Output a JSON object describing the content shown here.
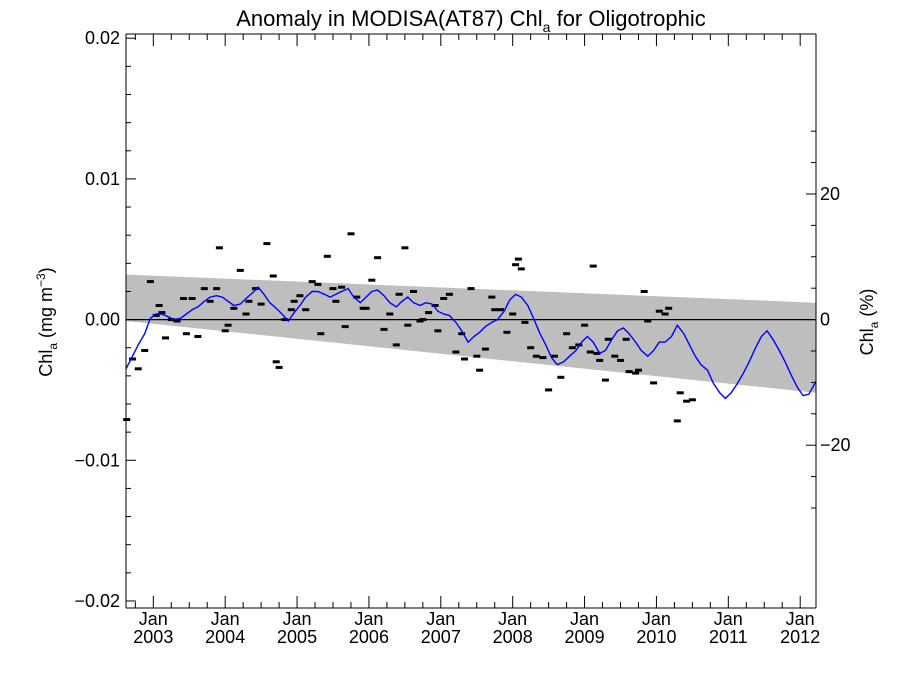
{
  "chart_data": {
    "type": "scatter",
    "title_main": "Anomaly in MODISA(AT87) Chl",
    "title_sub": "a",
    "title_rest": " for Oligotrophic",
    "ylabel_left_main": "Chl",
    "ylabel_left_sub": "a",
    "ylabel_left_units": " (mg m",
    "ylabel_left_exp": "−3",
    "ylabel_left_close": ")",
    "ylabel_right_main": "Chl",
    "ylabel_right_sub": "a",
    "ylabel_right_units": " (%)",
    "left_axis": {
      "ylim": [
        -0.0205,
        0.0203
      ],
      "ticks": [
        -0.02,
        -0.01,
        0.0,
        0.01,
        0.02
      ],
      "tick_labels": [
        "−0.02",
        "−0.01",
        "0.00",
        "0.01",
        "0.02"
      ]
    },
    "right_axis": {
      "ticks": [
        -20,
        0,
        20
      ],
      "tick_labels": [
        "−20",
        "0",
        "20"
      ],
      "percent_per_unit": 2240
    },
    "x_axis": {
      "xlim": [
        2002.62,
        2012.22
      ],
      "ticks": [
        2003,
        2004,
        2005,
        2006,
        2007,
        2008,
        2009,
        2010,
        2011,
        2012
      ],
      "tick_month": "Jan",
      "tick_years": [
        "2003",
        "2004",
        "2005",
        "2006",
        "2007",
        "2008",
        "2009",
        "2010",
        "2011",
        "2012"
      ]
    },
    "zero_line": true,
    "confidence_band": {
      "x": [
        2002.62,
        2012.22
      ],
      "upper": [
        0.0032,
        0.0012
      ],
      "lower": [
        -0.0001,
        -0.0052
      ],
      "color": "#bebebe"
    },
    "series": [
      {
        "style": "markers",
        "color": "#000000",
        "points": [
          [
            2002.63,
            -0.0071
          ],
          [
            2002.71,
            -0.0028
          ],
          [
            2002.79,
            -0.0035
          ],
          [
            2002.88,
            -0.0022
          ],
          [
            2002.96,
            0.0027
          ],
          [
            2003.04,
            0.0003
          ],
          [
            2003.08,
            0.001
          ],
          [
            2003.12,
            0.0005
          ],
          [
            2003.17,
            -0.0013
          ],
          [
            2003.25,
            0.0
          ],
          [
            2003.33,
            -0.0001
          ],
          [
            2003.42,
            0.0015
          ],
          [
            2003.46,
            -0.001
          ],
          [
            2003.54,
            0.0015
          ],
          [
            2003.62,
            -0.0012
          ],
          [
            2003.71,
            0.0022
          ],
          [
            2003.79,
            0.0013
          ],
          [
            2003.88,
            0.0022
          ],
          [
            2003.92,
            0.0051
          ],
          [
            2004.0,
            -0.0008
          ],
          [
            2004.04,
            -0.0004
          ],
          [
            2004.12,
            0.0008
          ],
          [
            2004.21,
            0.0035
          ],
          [
            2004.29,
            0.0004
          ],
          [
            2004.33,
            0.0013
          ],
          [
            2004.42,
            0.0022
          ],
          [
            2004.5,
            0.0011
          ],
          [
            2004.58,
            0.0054
          ],
          [
            2004.67,
            0.0031
          ],
          [
            2004.71,
            -0.003
          ],
          [
            2004.75,
            -0.0034
          ],
          [
            2004.83,
            0.0
          ],
          [
            2004.92,
            0.0007
          ],
          [
            2004.96,
            0.0013
          ],
          [
            2005.04,
            0.0017
          ],
          [
            2005.12,
            0.0007
          ],
          [
            2005.21,
            0.0027
          ],
          [
            2005.29,
            0.0025
          ],
          [
            2005.33,
            -0.001
          ],
          [
            2005.42,
            0.0045
          ],
          [
            2005.5,
            0.0022
          ],
          [
            2005.54,
            0.0013
          ],
          [
            2005.62,
            0.0023
          ],
          [
            2005.67,
            -0.0005
          ],
          [
            2005.75,
            0.0061
          ],
          [
            2005.83,
            0.0016
          ],
          [
            2005.92,
            0.0008
          ],
          [
            2005.96,
            0.0008
          ],
          [
            2006.04,
            0.0028
          ],
          [
            2006.12,
            0.0044
          ],
          [
            2006.21,
            -0.0007
          ],
          [
            2006.29,
            0.0004
          ],
          [
            2006.38,
            -0.0018
          ],
          [
            2006.42,
            0.0018
          ],
          [
            2006.5,
            0.0051
          ],
          [
            2006.54,
            -0.0004
          ],
          [
            2006.62,
            0.002
          ],
          [
            2006.71,
            -0.0001
          ],
          [
            2006.75,
            0.0
          ],
          [
            2006.83,
            0.0005
          ],
          [
            2006.92,
            0.001
          ],
          [
            2006.96,
            -0.0008
          ],
          [
            2007.04,
            0.0015
          ],
          [
            2007.12,
            0.0018
          ],
          [
            2007.21,
            -0.0023
          ],
          [
            2007.29,
            -0.001
          ],
          [
            2007.33,
            -0.0028
          ],
          [
            2007.42,
            0.0022
          ],
          [
            2007.5,
            -0.0026
          ],
          [
            2007.54,
            -0.0036
          ],
          [
            2007.62,
            -0.0021
          ],
          [
            2007.71,
            0.0016
          ],
          [
            2007.75,
            0.0007
          ],
          [
            2007.83,
            0.0007
          ],
          [
            2007.92,
            -0.0009
          ],
          [
            2008.0,
            0.0004
          ],
          [
            2008.04,
            0.0039
          ],
          [
            2008.08,
            0.0043
          ],
          [
            2008.12,
            0.0036
          ],
          [
            2008.17,
            -0.0002
          ],
          [
            2008.25,
            -0.002
          ],
          [
            2008.33,
            -0.0026
          ],
          [
            2008.42,
            -0.0027
          ],
          [
            2008.5,
            -0.005
          ],
          [
            2008.58,
            -0.0026
          ],
          [
            2008.67,
            -0.0041
          ],
          [
            2008.75,
            -0.001
          ],
          [
            2008.83,
            -0.002
          ],
          [
            2008.92,
            -0.0018
          ],
          [
            2009.0,
            -0.0004
          ],
          [
            2009.08,
            -0.0023
          ],
          [
            2009.12,
            0.0038
          ],
          [
            2009.17,
            -0.0024
          ],
          [
            2009.21,
            -0.0029
          ],
          [
            2009.29,
            -0.0043
          ],
          [
            2009.33,
            -0.0014
          ],
          [
            2009.42,
            -0.0026
          ],
          [
            2009.5,
            -0.0029
          ],
          [
            2009.58,
            -0.0014
          ],
          [
            2009.62,
            -0.0037
          ],
          [
            2009.71,
            -0.0038
          ],
          [
            2009.75,
            -0.0036
          ],
          [
            2009.83,
            0.002
          ],
          [
            2009.88,
            -0.0001
          ],
          [
            2009.96,
            -0.0045
          ],
          [
            2010.04,
            0.0006
          ],
          [
            2010.12,
            0.0004
          ],
          [
            2010.17,
            0.0008
          ],
          [
            2010.29,
            -0.0072
          ],
          [
            2010.33,
            -0.0052
          ],
          [
            2010.42,
            -0.0058
          ],
          [
            2010.5,
            -0.0057
          ]
        ]
      },
      {
        "style": "line",
        "color": "#0000ff",
        "points": [
          [
            2002.62,
            -0.0035
          ],
          [
            2002.71,
            -0.0026
          ],
          [
            2002.79,
            -0.0018
          ],
          [
            2002.88,
            -0.001
          ],
          [
            2002.96,
            0.0001
          ],
          [
            2003.04,
            0.0004
          ],
          [
            2003.12,
            0.0004
          ],
          [
            2003.21,
            0.0002
          ],
          [
            2003.29,
            0.0
          ],
          [
            2003.38,
            0.0001
          ],
          [
            2003.46,
            0.0004
          ],
          [
            2003.54,
            0.0007
          ],
          [
            2003.62,
            0.0009
          ],
          [
            2003.71,
            0.0013
          ],
          [
            2003.79,
            0.0016
          ],
          [
            2003.88,
            0.0017
          ],
          [
            2003.96,
            0.0016
          ],
          [
            2004.04,
            0.0013
          ],
          [
            2004.12,
            0.001
          ],
          [
            2004.21,
            0.0011
          ],
          [
            2004.29,
            0.0015
          ],
          [
            2004.38,
            0.0019
          ],
          [
            2004.46,
            0.0023
          ],
          [
            2004.54,
            0.0018
          ],
          [
            2004.62,
            0.0012
          ],
          [
            2004.71,
            0.0008
          ],
          [
            2004.79,
            0.0004
          ],
          [
            2004.88,
            -0.0001
          ],
          [
            2004.96,
            0.0005
          ],
          [
            2005.04,
            0.001
          ],
          [
            2005.12,
            0.0016
          ],
          [
            2005.21,
            0.002
          ],
          [
            2005.29,
            0.002
          ],
          [
            2005.38,
            0.0018
          ],
          [
            2005.46,
            0.0016
          ],
          [
            2005.54,
            0.0018
          ],
          [
            2005.62,
            0.002
          ],
          [
            2005.71,
            0.0022
          ],
          [
            2005.79,
            0.0016
          ],
          [
            2005.88,
            0.0012
          ],
          [
            2005.96,
            0.0016
          ],
          [
            2006.04,
            0.002
          ],
          [
            2006.12,
            0.0021
          ],
          [
            2006.21,
            0.0017
          ],
          [
            2006.29,
            0.0012
          ],
          [
            2006.38,
            0.0009
          ],
          [
            2006.46,
            0.0013
          ],
          [
            2006.54,
            0.0016
          ],
          [
            2006.62,
            0.0012
          ],
          [
            2006.71,
            0.001
          ],
          [
            2006.79,
            0.0012
          ],
          [
            2006.88,
            0.0011
          ],
          [
            2006.96,
            0.0006
          ],
          [
            2007.04,
            0.0004
          ],
          [
            2007.12,
            0.0003
          ],
          [
            2007.21,
            -0.0002
          ],
          [
            2007.29,
            -0.0008
          ],
          [
            2007.38,
            -0.0016
          ],
          [
            2007.46,
            -0.0012
          ],
          [
            2007.54,
            -0.0009
          ],
          [
            2007.62,
            -0.0005
          ],
          [
            2007.71,
            -0.0002
          ],
          [
            2007.79,
            0.0
          ],
          [
            2007.88,
            0.0006
          ],
          [
            2007.96,
            0.0014
          ],
          [
            2008.04,
            0.0018
          ],
          [
            2008.12,
            0.0016
          ],
          [
            2008.21,
            0.001
          ],
          [
            2008.29,
            0.0001
          ],
          [
            2008.38,
            -0.001
          ],
          [
            2008.46,
            -0.0018
          ],
          [
            2008.54,
            -0.0027
          ],
          [
            2008.62,
            -0.0032
          ],
          [
            2008.71,
            -0.003
          ],
          [
            2008.79,
            -0.0026
          ],
          [
            2008.88,
            -0.0022
          ],
          [
            2008.96,
            -0.0016
          ],
          [
            2009.04,
            -0.0012
          ],
          [
            2009.12,
            -0.0016
          ],
          [
            2009.21,
            -0.0024
          ],
          [
            2009.29,
            -0.0022
          ],
          [
            2009.38,
            -0.0014
          ],
          [
            2009.46,
            -0.0008
          ],
          [
            2009.54,
            -0.0006
          ],
          [
            2009.62,
            -0.001
          ],
          [
            2009.71,
            -0.0016
          ],
          [
            2009.79,
            -0.0022
          ],
          [
            2009.88,
            -0.0026
          ],
          [
            2009.96,
            -0.0022
          ],
          [
            2010.04,
            -0.0016
          ],
          [
            2010.12,
            -0.0016
          ],
          [
            2010.21,
            -0.0012
          ],
          [
            2010.29,
            -0.0004
          ],
          [
            2010.38,
            -0.001
          ],
          [
            2010.46,
            -0.0018
          ],
          [
            2010.54,
            -0.0026
          ],
          [
            2010.62,
            -0.0032
          ],
          [
            2010.71,
            -0.0036
          ],
          [
            2010.79,
            -0.0045
          ],
          [
            2010.88,
            -0.0052
          ],
          [
            2010.96,
            -0.0056
          ],
          [
            2011.04,
            -0.0052
          ],
          [
            2011.12,
            -0.0046
          ],
          [
            2011.21,
            -0.0038
          ],
          [
            2011.29,
            -0.003
          ],
          [
            2011.38,
            -0.002
          ],
          [
            2011.46,
            -0.0012
          ],
          [
            2011.54,
            -0.0008
          ],
          [
            2011.62,
            -0.0014
          ],
          [
            2011.71,
            -0.0022
          ],
          [
            2011.79,
            -0.003
          ],
          [
            2011.88,
            -0.004
          ],
          [
            2011.96,
            -0.0048
          ],
          [
            2012.04,
            -0.0054
          ],
          [
            2012.12,
            -0.0053
          ],
          [
            2012.22,
            -0.0044
          ]
        ]
      }
    ]
  }
}
